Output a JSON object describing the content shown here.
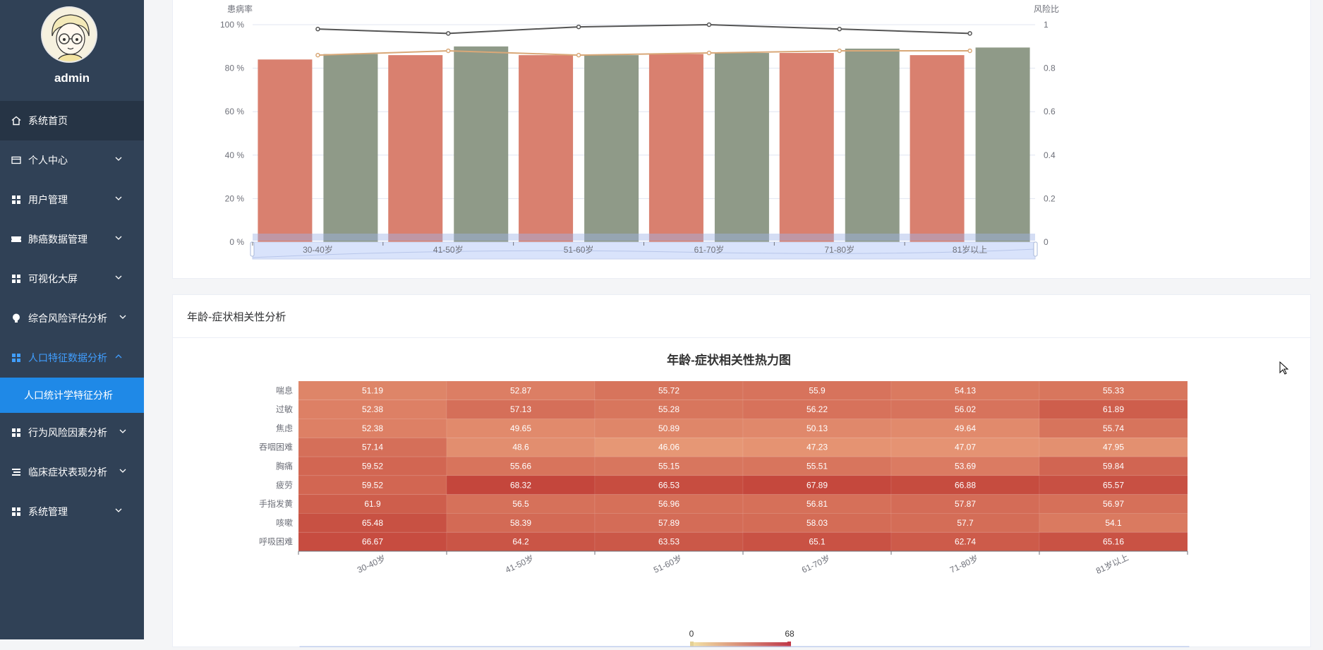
{
  "sidebar": {
    "username": "admin",
    "items": [
      {
        "label": "系统首页"
      },
      {
        "label": "个人中心"
      },
      {
        "label": "用户管理"
      },
      {
        "label": "肺癌数据管理"
      },
      {
        "label": "可视化大屏"
      },
      {
        "label": "综合风险评估分析"
      },
      {
        "label": "人口特征数据分析"
      },
      {
        "label": "人口统计学特征分析"
      },
      {
        "label": "行为风险因素分析"
      },
      {
        "label": "临床症状表现分析"
      },
      {
        "label": "系统管理"
      }
    ]
  },
  "colors": {
    "sidebar_bg": "#304156",
    "active_blue": "#409eff",
    "submenu_blue": "#1f89e7",
    "bar_red": "#d9806f",
    "bar_green": "#8f9a88",
    "line_orange": "#d9a878",
    "line_dark": "#555555"
  },
  "chart_data": [
    {
      "type": "bar",
      "ylabel": "患病率",
      "y2label": "风险比",
      "categories": [
        "30-40岁",
        "41-50岁",
        "51-60岁",
        "61-70岁",
        "71-80岁",
        "81岁以上"
      ],
      "yticks": [
        "100 %",
        "80 %",
        "60 %",
        "40 %",
        "20 %",
        "0 %"
      ],
      "y2ticks": [
        "1",
        "0.8",
        "0.6",
        "0.4",
        "0.2",
        "0"
      ],
      "ylim": [
        0,
        100
      ],
      "y2lim": [
        0,
        1
      ],
      "series": [
        {
          "type": "bar",
          "values": [
            84,
            86,
            86,
            86.5,
            87,
            86
          ]
        },
        {
          "type": "bar",
          "values": [
            86.5,
            90,
            86,
            87,
            89,
            89.5
          ]
        },
        {
          "type": "line",
          "axis": "right",
          "values": [
            0.86,
            0.88,
            0.86,
            0.87,
            0.88,
            0.88
          ]
        },
        {
          "type": "line",
          "axis": "right",
          "values": [
            0.98,
            0.96,
            0.99,
            1.0,
            0.98,
            0.96
          ]
        }
      ],
      "grid": true
    },
    {
      "type": "heatmap",
      "card_title": "年龄-症状相关性分析",
      "title": "年龄-症状相关性热力图",
      "x": [
        "30-40岁",
        "41-50岁",
        "51-60岁",
        "61-70岁",
        "71-80岁",
        "81岁以上"
      ],
      "y": [
        "喘息",
        "过敏",
        "焦虑",
        "吞咽困难",
        "胸痛",
        "疲劳",
        "手指发黄",
        "咳嗽",
        "呼吸困难"
      ],
      "values": [
        [
          51.19,
          52.87,
          55.72,
          55.9,
          54.13,
          55.33
        ],
        [
          52.38,
          57.13,
          55.28,
          56.22,
          56.02,
          61.89
        ],
        [
          52.38,
          49.65,
          50.89,
          50.13,
          49.64,
          55.74
        ],
        [
          57.14,
          48.6,
          46.06,
          47.23,
          47.07,
          47.95
        ],
        [
          59.52,
          55.66,
          55.15,
          55.51,
          53.69,
          59.84
        ],
        [
          59.52,
          68.32,
          66.53,
          67.89,
          66.88,
          65.57
        ],
        [
          61.9,
          56.5,
          56.96,
          56.81,
          57.87,
          56.97
        ],
        [
          65.48,
          58.39,
          57.89,
          58.03,
          57.7,
          54.1
        ],
        [
          66.67,
          64.2,
          63.53,
          65.1,
          62.74,
          65.16
        ]
      ],
      "visualmap": {
        "min": "0",
        "max": "68"
      }
    }
  ]
}
